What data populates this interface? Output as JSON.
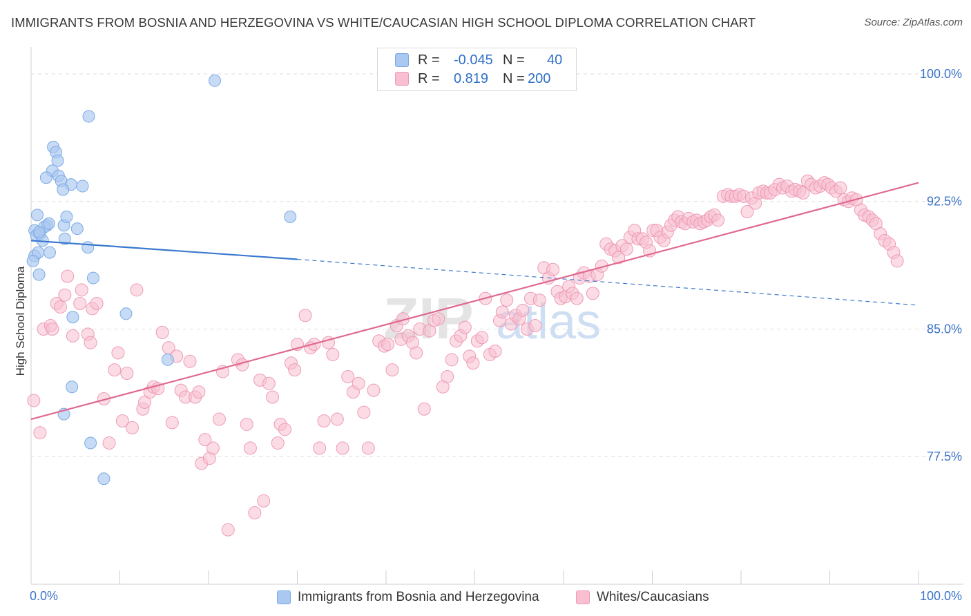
{
  "title": "IMMIGRANTS FROM BOSNIA AND HERZEGOVINA VS WHITE/CAUCASIAN HIGH SCHOOL DIPLOMA CORRELATION CHART",
  "source": "Source: ZipAtlas.com",
  "watermark": {
    "zip": "ZIP",
    "atlas": "atlas"
  },
  "legend": {
    "r_label": "R =",
    "n_label": "N =",
    "series1": {
      "r": "-0.045",
      "n": "40"
    },
    "series2": {
      "r": "0.819",
      "n": "200"
    }
  },
  "colors": {
    "blue_fill": "#aac8f0",
    "blue_stroke": "#7aaae6",
    "blue_line": "#3a78cf",
    "pink_fill": "#f7bfd0",
    "pink_stroke": "#ee9ab6",
    "pink_line": "#e0698f",
    "grid": "#dddddd",
    "tick_label": "#3a74c9"
  },
  "chart_data": {
    "type": "scatter",
    "title": "IMMIGRANTS FROM BOSNIA AND HERZEGOVINA VS WHITE/CAUCASIAN HIGH SCHOOL DIPLOMA CORRELATION CHART",
    "xlabel": "",
    "ylabel": "High School Diploma",
    "xlim": [
      0,
      100
    ],
    "ylim": [
      70.0,
      101.5
    ],
    "x_tick_labels": [
      "0.0%",
      "100.0%"
    ],
    "y_ticks": [
      77.5,
      85.0,
      92.5,
      100.0
    ],
    "y_tick_labels": [
      "77.5%",
      "85.0%",
      "92.5%",
      "100.0%"
    ],
    "grid": true,
    "legend_position": "top-center",
    "series": [
      {
        "name": "Immigrants from Bosnia and Herzegovina",
        "color": "blue",
        "r": -0.045,
        "n": 40,
        "trend": {
          "x": [
            0,
            30,
            100
          ],
          "y": [
            90.2,
            89.1,
            86.4
          ],
          "solid_until": 30
        },
        "points": [
          [
            20.7,
            99.6
          ],
          [
            6.5,
            97.5
          ],
          [
            2.5,
            95.7
          ],
          [
            2.8,
            95.4
          ],
          [
            3.0,
            94.9
          ],
          [
            2.4,
            94.3
          ],
          [
            1.7,
            93.9
          ],
          [
            3.1,
            94.0
          ],
          [
            3.4,
            93.7
          ],
          [
            4.5,
            93.5
          ],
          [
            3.6,
            93.2
          ],
          [
            5.8,
            93.4
          ],
          [
            0.7,
            91.7
          ],
          [
            1.8,
            91.1
          ],
          [
            1.5,
            91.0
          ],
          [
            2.0,
            91.2
          ],
          [
            3.7,
            91.1
          ],
          [
            0.4,
            90.8
          ],
          [
            4.0,
            91.6
          ],
          [
            5.2,
            90.9
          ],
          [
            0.6,
            90.5
          ],
          [
            1.0,
            90.6
          ],
          [
            1.3,
            90.2
          ],
          [
            3.8,
            90.3
          ],
          [
            0.9,
            90.7
          ],
          [
            0.4,
            89.3
          ],
          [
            0.8,
            89.5
          ],
          [
            2.1,
            89.5
          ],
          [
            6.4,
            89.8
          ],
          [
            0.9,
            88.2
          ],
          [
            7.0,
            88.0
          ],
          [
            29.2,
            91.6
          ],
          [
            10.7,
            85.9
          ],
          [
            4.7,
            85.7
          ],
          [
            15.4,
            83.2
          ],
          [
            4.6,
            81.6
          ],
          [
            3.7,
            80.0
          ],
          [
            6.7,
            78.3
          ],
          [
            8.2,
            76.2
          ],
          [
            0.2,
            89.0
          ]
        ]
      },
      {
        "name": "Whites/Caucasians",
        "color": "pink",
        "r": 0.819,
        "n": 200,
        "trend": {
          "x": [
            0,
            100
          ],
          "y": [
            79.7,
            93.6
          ]
        },
        "points": [
          [
            0.3,
            80.8
          ],
          [
            1.0,
            78.9
          ],
          [
            1.4,
            85.0
          ],
          [
            2.2,
            85.2
          ],
          [
            2.4,
            85.0
          ],
          [
            2.9,
            86.5
          ],
          [
            3.3,
            86.3
          ],
          [
            3.8,
            87.0
          ],
          [
            4.1,
            88.1
          ],
          [
            4.7,
            84.6
          ],
          [
            5.5,
            86.5
          ],
          [
            5.7,
            87.3
          ],
          [
            6.4,
            84.7
          ],
          [
            6.7,
            84.2
          ],
          [
            6.9,
            86.2
          ],
          [
            7.4,
            86.5
          ],
          [
            8.2,
            80.9
          ],
          [
            8.8,
            78.3
          ],
          [
            9.4,
            82.6
          ],
          [
            9.8,
            83.6
          ],
          [
            10.3,
            79.6
          ],
          [
            10.8,
            82.4
          ],
          [
            11.4,
            79.2
          ],
          [
            11.9,
            87.3
          ],
          [
            12.6,
            80.3
          ],
          [
            12.8,
            80.7
          ],
          [
            13.4,
            81.3
          ],
          [
            13.8,
            81.6
          ],
          [
            14.3,
            81.5
          ],
          [
            14.8,
            84.8
          ],
          [
            15.5,
            83.9
          ],
          [
            15.9,
            79.5
          ],
          [
            16.4,
            83.4
          ],
          [
            16.9,
            81.4
          ],
          [
            17.4,
            81.0
          ],
          [
            17.9,
            83.1
          ],
          [
            18.5,
            81.0
          ],
          [
            18.9,
            81.3
          ],
          [
            19.2,
            77.1
          ],
          [
            19.6,
            78.5
          ],
          [
            20.1,
            77.4
          ],
          [
            20.5,
            78.0
          ],
          [
            21.2,
            79.7
          ],
          [
            21.6,
            82.5
          ],
          [
            22.2,
            73.2
          ],
          [
            23.3,
            83.2
          ],
          [
            23.8,
            82.9
          ],
          [
            24.3,
            79.4
          ],
          [
            24.7,
            78.0
          ],
          [
            25.2,
            74.2
          ],
          [
            25.8,
            82.0
          ],
          [
            26.2,
            74.9
          ],
          [
            26.8,
            81.8
          ],
          [
            27.2,
            81.0
          ],
          [
            27.8,
            78.3
          ],
          [
            28.1,
            79.4
          ],
          [
            28.6,
            79.1
          ],
          [
            29.3,
            83.0
          ],
          [
            29.7,
            82.6
          ],
          [
            30.0,
            84.1
          ],
          [
            30.9,
            85.8
          ],
          [
            31.5,
            83.9
          ],
          [
            31.9,
            84.1
          ],
          [
            32.5,
            78.0
          ],
          [
            33.0,
            79.6
          ],
          [
            33.5,
            84.2
          ],
          [
            34.0,
            83.5
          ],
          [
            34.5,
            79.7
          ],
          [
            35.1,
            78.0
          ],
          [
            35.7,
            82.2
          ],
          [
            36.3,
            81.3
          ],
          [
            36.9,
            81.8
          ],
          [
            37.5,
            80.1
          ],
          [
            38.0,
            78.0
          ],
          [
            38.6,
            81.4
          ],
          [
            39.2,
            84.3
          ],
          [
            39.8,
            84.0
          ],
          [
            40.2,
            84.1
          ],
          [
            40.7,
            82.6
          ],
          [
            41.2,
            85.2
          ],
          [
            41.7,
            84.4
          ],
          [
            41.9,
            85.6
          ],
          [
            42.5,
            84.6
          ],
          [
            43.0,
            84.2
          ],
          [
            43.4,
            83.6
          ],
          [
            43.8,
            85.0
          ],
          [
            44.3,
            80.3
          ],
          [
            44.9,
            84.9
          ],
          [
            45.4,
            85.5
          ],
          [
            45.9,
            85.6
          ],
          [
            46.4,
            81.6
          ],
          [
            46.9,
            82.2
          ],
          [
            47.4,
            83.2
          ],
          [
            47.9,
            84.3
          ],
          [
            48.4,
            84.6
          ],
          [
            48.9,
            85.1
          ],
          [
            49.4,
            83.4
          ],
          [
            49.8,
            83.0
          ],
          [
            50.3,
            84.3
          ],
          [
            50.8,
            84.5
          ],
          [
            51.2,
            86.8
          ],
          [
            51.7,
            83.5
          ],
          [
            52.3,
            83.7
          ],
          [
            52.8,
            85.5
          ],
          [
            53.1,
            86.0
          ],
          [
            53.6,
            86.7
          ],
          [
            54.1,
            85.3
          ],
          [
            54.6,
            85.8
          ],
          [
            55.0,
            85.6
          ],
          [
            55.4,
            86.1
          ],
          [
            55.9,
            85.0
          ],
          [
            56.3,
            86.8
          ],
          [
            56.8,
            85.2
          ],
          [
            57.3,
            86.7
          ],
          [
            57.8,
            88.6
          ],
          [
            58.3,
            88.0
          ],
          [
            58.8,
            88.5
          ],
          [
            59.3,
            87.2
          ],
          [
            59.7,
            86.8
          ],
          [
            60.2,
            86.9
          ],
          [
            60.6,
            87.5
          ],
          [
            61.0,
            87.1
          ],
          [
            61.5,
            86.8
          ],
          [
            61.8,
            88.0
          ],
          [
            62.3,
            88.3
          ],
          [
            62.9,
            88.1
          ],
          [
            63.3,
            87.1
          ],
          [
            63.8,
            88.2
          ],
          [
            64.3,
            88.7
          ],
          [
            64.8,
            90.0
          ],
          [
            65.3,
            89.7
          ],
          [
            65.8,
            89.6
          ],
          [
            66.2,
            89.2
          ],
          [
            66.6,
            89.9
          ],
          [
            67.1,
            89.7
          ],
          [
            67.5,
            90.4
          ],
          [
            68.0,
            90.8
          ],
          [
            68.4,
            90.3
          ],
          [
            68.9,
            90.3
          ],
          [
            69.3,
            90.1
          ],
          [
            69.7,
            89.6
          ],
          [
            70.1,
            90.8
          ],
          [
            70.5,
            90.8
          ],
          [
            70.9,
            90.4
          ],
          [
            71.3,
            90.2
          ],
          [
            71.7,
            90.7
          ],
          [
            72.1,
            91.1
          ],
          [
            72.5,
            91.4
          ],
          [
            72.9,
            91.6
          ],
          [
            73.3,
            91.3
          ],
          [
            73.7,
            91.2
          ],
          [
            74.1,
            91.5
          ],
          [
            74.6,
            91.3
          ],
          [
            75.0,
            91.4
          ],
          [
            75.4,
            91.2
          ],
          [
            75.8,
            91.3
          ],
          [
            76.2,
            91.4
          ],
          [
            76.6,
            91.6
          ],
          [
            77.0,
            91.7
          ],
          [
            77.4,
            91.4
          ],
          [
            78.0,
            92.8
          ],
          [
            78.5,
            92.9
          ],
          [
            78.9,
            92.8
          ],
          [
            79.4,
            92.8
          ],
          [
            79.8,
            92.9
          ],
          [
            80.3,
            92.8
          ],
          [
            80.7,
            91.9
          ],
          [
            81.2,
            92.7
          ],
          [
            81.6,
            92.4
          ],
          [
            82.0,
            93.0
          ],
          [
            82.5,
            93.1
          ],
          [
            82.9,
            93.0
          ],
          [
            83.3,
            93.0
          ],
          [
            83.8,
            93.2
          ],
          [
            84.3,
            93.5
          ],
          [
            84.7,
            93.3
          ],
          [
            85.2,
            93.4
          ],
          [
            85.7,
            93.1
          ],
          [
            86.1,
            93.2
          ],
          [
            86.6,
            93.1
          ],
          [
            87.0,
            93.0
          ],
          [
            87.5,
            93.7
          ],
          [
            87.9,
            93.5
          ],
          [
            88.4,
            93.3
          ],
          [
            88.9,
            93.4
          ],
          [
            89.4,
            93.6
          ],
          [
            89.8,
            93.5
          ],
          [
            90.2,
            93.3
          ],
          [
            90.7,
            93.1
          ],
          [
            91.2,
            93.3
          ],
          [
            91.6,
            92.6
          ],
          [
            92.1,
            92.5
          ],
          [
            92.5,
            92.7
          ],
          [
            93.0,
            92.6
          ],
          [
            93.5,
            92.0
          ],
          [
            93.9,
            91.7
          ],
          [
            94.4,
            91.6
          ],
          [
            94.8,
            91.4
          ],
          [
            95.2,
            91.2
          ],
          [
            95.7,
            90.6
          ],
          [
            96.2,
            90.2
          ],
          [
            96.7,
            90.0
          ],
          [
            97.2,
            89.5
          ],
          [
            97.6,
            89.0
          ]
        ]
      }
    ]
  },
  "bottom_legend": {
    "series1_label": "Immigrants from Bosnia and Herzegovina",
    "series2_label": "Whites/Caucasians"
  }
}
